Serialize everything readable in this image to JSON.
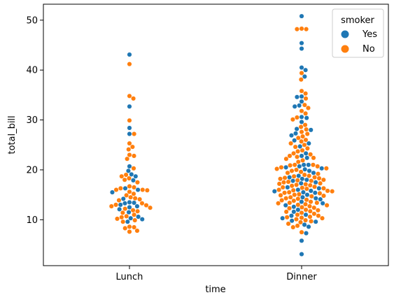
{
  "chart_data": {
    "type": "scatter",
    "subtype": "swarm",
    "title": "",
    "xlabel": "time",
    "ylabel": "total_bill",
    "categories": [
      "Lunch",
      "Dinner"
    ],
    "ylim": [
      0.8,
      53.2
    ],
    "yticks": [
      10,
      20,
      30,
      40,
      50
    ],
    "grid": false,
    "legend": {
      "title": "smoker",
      "placement": "top-right",
      "entries": [
        {
          "label": "Yes",
          "color": "#1f77b4"
        },
        {
          "label": "No",
          "color": "#ff7f0e"
        }
      ]
    },
    "series": [
      {
        "name": "Yes",
        "color": "#1f77b4",
        "values_by_category": {
          "Lunch": [
            43.1,
            32.7,
            28.4,
            27.2,
            20.7,
            19.8,
            19.1,
            18.7,
            17.9,
            16.3,
            16.0,
            15.5,
            14.2,
            13.5,
            13.4,
            13.3,
            13.0,
            12.7,
            12.5,
            12.1,
            11.5,
            10.6,
            10.3,
            10.1,
            9.6
          ],
          "Dinner": [
            50.8,
            45.4,
            44.3,
            40.5,
            40.0,
            38.7,
            34.7,
            34.6,
            33.7,
            32.9,
            32.7,
            30.6,
            30.4,
            29.6,
            28.2,
            28.0,
            27.3,
            26.9,
            25.9,
            25.3,
            24.7,
            23.3,
            22.8,
            22.4,
            21.0,
            21.0,
            20.7,
            20.5,
            20.3,
            20.1,
            19.8,
            19.4,
            18.8,
            18.5,
            18.2,
            18.0,
            17.8,
            17.5,
            17.3,
            16.5,
            16.3,
            16.0,
            15.8,
            15.7,
            15.5,
            15.4,
            15.0,
            14.5,
            14.3,
            14.1,
            13.6,
            13.3,
            12.9,
            12.6,
            12.0,
            11.6,
            11.0,
            10.8,
            10.3,
            9.8,
            9.6,
            9.0,
            8.6,
            7.3,
            5.8,
            3.1
          ]
        }
      },
      {
        "name": "No",
        "color": "#ff7f0e",
        "values_by_category": {
          "Lunch": [
            41.2,
            34.8,
            34.3,
            29.9,
            27.2,
            25.3,
            24.6,
            24.1,
            23.0,
            22.8,
            22.2,
            20.3,
            19.0,
            18.7,
            18.3,
            18.0,
            17.5,
            16.7,
            16.5,
            16.3,
            16.0,
            16.0,
            15.9,
            15.6,
            15.2,
            14.9,
            14.5,
            14.3,
            14.1,
            13.9,
            13.3,
            13.0,
            12.9,
            12.7,
            12.4,
            12.2,
            11.9,
            11.7,
            11.4,
            11.0,
            10.7,
            10.5,
            10.2,
            9.9,
            9.6,
            8.6,
            8.5,
            8.3,
            7.8,
            7.6
          ],
          "Dinner": [
            48.3,
            48.2,
            48.2,
            39.4,
            38.1,
            35.3,
            35.8,
            34.3,
            33.0,
            32.4,
            31.8,
            31.3,
            30.5,
            30.1,
            29.0,
            28.6,
            28.1,
            27.6,
            27.2,
            26.7,
            26.4,
            26.0,
            25.7,
            25.3,
            25.0,
            24.6,
            24.3,
            23.9,
            23.7,
            23.3,
            23.1,
            22.8,
            22.6,
            22.4,
            22.2,
            21.9,
            21.6,
            21.0,
            21.0,
            20.9,
            20.7,
            20.5,
            20.3,
            20.2,
            20.0,
            19.8,
            19.6,
            19.4,
            19.2,
            19.0,
            18.8,
            18.7,
            18.5,
            18.4,
            18.3,
            18.2,
            18.0,
            17.9,
            17.8,
            17.6,
            17.5,
            17.3,
            17.2,
            17.1,
            17.0,
            16.9,
            16.8,
            16.6,
            16.5,
            16.4,
            16.3,
            16.2,
            16.0,
            15.9,
            15.8,
            15.7,
            15.5,
            15.4,
            15.3,
            15.1,
            15.0,
            14.9,
            14.8,
            14.7,
            14.5,
            14.3,
            14.2,
            14.0,
            13.9,
            13.8,
            13.6,
            13.4,
            13.4,
            13.3,
            13.1,
            13.0,
            12.9,
            12.7,
            12.5,
            12.4,
            12.3,
            12.0,
            11.9,
            11.7,
            11.6,
            11.4,
            11.2,
            11.0,
            10.8,
            10.6,
            10.5,
            10.4,
            10.3,
            10.1,
            9.9,
            9.7,
            9.5,
            9.2,
            8.8,
            8.5,
            7.5
          ]
        }
      }
    ]
  }
}
